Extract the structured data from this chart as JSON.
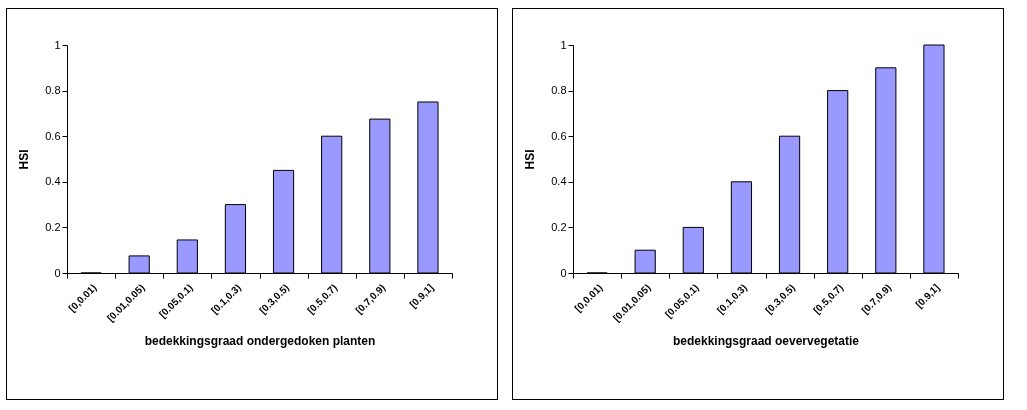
{
  "chart_data": [
    {
      "type": "bar",
      "xlabel": "bedekkingsgraad ondergedoken planten",
      "ylabel": "HSI",
      "categories": [
        "[0,0.01)",
        "[0.01,0.05)",
        "[0.05,0.1)",
        "[0.1,0.3)",
        "[0.3,0.5)",
        "[0.5,0.7)",
        "[0.7,0.9)",
        "[0.9,1]"
      ],
      "values": [
        0,
        0.075,
        0.145,
        0.3,
        0.45,
        0.6,
        0.675,
        0.75
      ],
      "color": "#9999ff",
      "ylim": [
        0,
        1
      ],
      "yticks": [
        0,
        0.2,
        0.4,
        0.6,
        0.8,
        1
      ],
      "grid": false
    },
    {
      "type": "bar",
      "xlabel": "bedekkingsgraad oevervegetatie",
      "ylabel": "HSI",
      "categories": [
        "[0,0.01)",
        "[0.01,0.05)",
        "[0.05,0.1)",
        "[0.1,0.3)",
        "[0.3,0.5)",
        "[0.5,0.7)",
        "[0.7,0.9)",
        "[0.9,1]"
      ],
      "values": [
        0,
        0.1,
        0.2,
        0.4,
        0.6,
        0.8,
        0.9,
        1
      ],
      "color": "#9999ff",
      "ylim": [
        0,
        1
      ],
      "yticks": [
        0,
        0.2,
        0.4,
        0.6,
        0.8,
        1
      ],
      "grid": false
    }
  ]
}
